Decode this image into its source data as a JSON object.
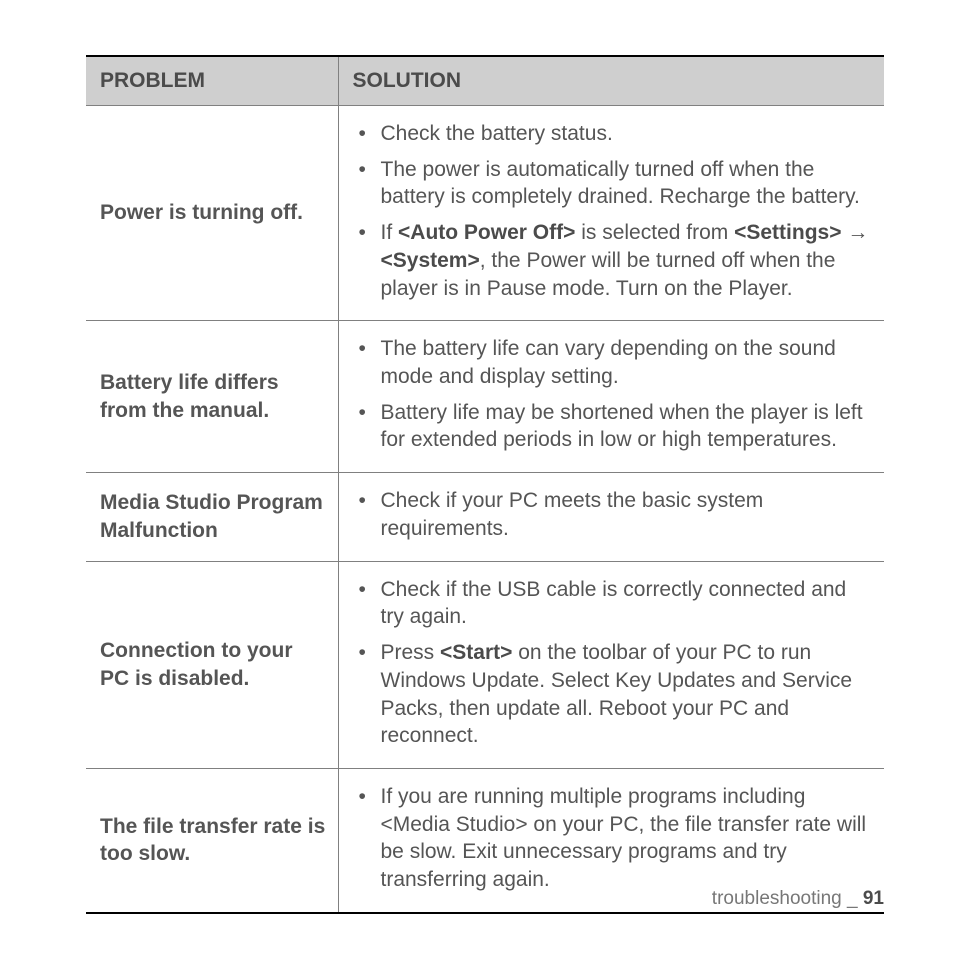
{
  "table": {
    "headers": {
      "problem": "PROBLEM",
      "solution": "SOLUTION"
    },
    "header_bg": "#cfcfcf",
    "header_color": "#4b4b4b",
    "border_color": "#808080",
    "text_color": "#555555",
    "font_size_pt": 16,
    "rows": [
      {
        "problem": "Power is turning off.",
        "solutions": [
          {
            "segments": [
              {
                "t": "Check the battery status."
              }
            ]
          },
          {
            "segments": [
              {
                "t": "The power is automatically turned off when the battery is completely drained. Recharge the battery."
              }
            ]
          },
          {
            "segments": [
              {
                "t": "If "
              },
              {
                "t": "<Auto Power Off>",
                "bold": true
              },
              {
                "t": " is selected from "
              },
              {
                "t": "<Settings>",
                "bold": true
              },
              {
                "t": " → "
              },
              {
                "t": "<System>",
                "bold": true
              },
              {
                "t": ", the Power will be turned off when the player is in Pause mode. Turn on the Player."
              }
            ]
          }
        ]
      },
      {
        "problem": "Battery life differs from the manual.",
        "solutions": [
          {
            "segments": [
              {
                "t": "The battery life can vary depending on the sound mode and display setting."
              }
            ]
          },
          {
            "segments": [
              {
                "t": "Battery life may be shortened when the player is left for extended periods in low or high temperatures."
              }
            ]
          }
        ]
      },
      {
        "problem": "Media Studio Program Malfunction",
        "solutions": [
          {
            "segments": [
              {
                "t": "Check if your PC meets the basic system requirements."
              }
            ]
          }
        ]
      },
      {
        "problem": "Connection to your PC is disabled.",
        "solutions": [
          {
            "segments": [
              {
                "t": "Check if the USB cable is correctly connected and try again."
              }
            ]
          },
          {
            "segments": [
              {
                "t": "Press "
              },
              {
                "t": "<Start>",
                "bold": true
              },
              {
                "t": " on the toolbar of your PC to run Windows Update. Select Key Updates and Service Packs, then update all. Reboot your PC and reconnect."
              }
            ]
          }
        ]
      },
      {
        "problem": "The file transfer rate is too slow.",
        "solutions": [
          {
            "segments": [
              {
                "t": "If you are running multiple programs including <Media Studio> on your PC, the file transfer rate will be slow. Exit unnecessary programs and try transferring again."
              }
            ]
          }
        ]
      }
    ]
  },
  "footer": {
    "section": "troubleshooting",
    "separator": " _ ",
    "page": "91"
  }
}
